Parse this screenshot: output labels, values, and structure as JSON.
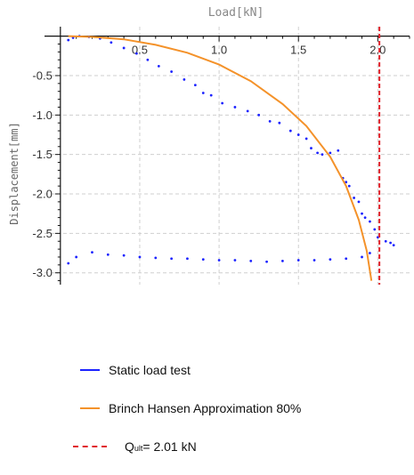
{
  "chart_data": {
    "type": "scatter",
    "title": "",
    "xlabel": "Load[kN]",
    "ylabel": "Displacement[mm]",
    "xlim": [
      -0.1,
      2.2
    ],
    "ylim": [
      -3.15,
      0.12
    ],
    "x_ticks": [
      0.5,
      1.0,
      1.5,
      2.0
    ],
    "x_tick_labels": [
      "0.5",
      "1.0",
      "1.5",
      "2.0"
    ],
    "y_ticks": [
      -0.5,
      -1.0,
      -1.5,
      -2.0,
      -2.5,
      -3.0
    ],
    "y_tick_labels": [
      "-0.5",
      "-1.0",
      "-1.5",
      "-2.0",
      "-2.5",
      "-3.0"
    ],
    "grid": true,
    "legend_position": "bottom",
    "colors": {
      "static": "#1c23ff",
      "hansen": "#f4922a",
      "qult": "#e0202a"
    },
    "series": [
      {
        "name": "Static load test",
        "kind": "scatter",
        "x": [
          0.05,
          0.08,
          0.12,
          0.18,
          0.25,
          0.32,
          0.4,
          0.48,
          0.55,
          0.62,
          0.7,
          0.78,
          0.85,
          0.9,
          0.95,
          1.02,
          1.1,
          1.18,
          1.25,
          1.32,
          1.38,
          1.45,
          1.5,
          1.55,
          1.58,
          1.62,
          1.65,
          1.7,
          1.75,
          1.78,
          1.8,
          1.82,
          1.85,
          1.88,
          1.9,
          1.92,
          1.95,
          1.98,
          2.0,
          2.05,
          2.08,
          2.1,
          1.95,
          1.9,
          1.8,
          1.7,
          1.6,
          1.5,
          1.4,
          1.3,
          1.2,
          1.1,
          1.0,
          0.9,
          0.8,
          0.7,
          0.6,
          0.5,
          0.4,
          0.3,
          0.2,
          0.1,
          0.05
        ],
        "y": [
          -0.05,
          -0.02,
          0.0,
          -0.01,
          -0.03,
          -0.08,
          -0.15,
          -0.22,
          -0.3,
          -0.38,
          -0.45,
          -0.55,
          -0.62,
          -0.72,
          -0.75,
          -0.85,
          -0.9,
          -0.95,
          -1.0,
          -1.08,
          -1.1,
          -1.2,
          -1.25,
          -1.3,
          -1.42,
          -1.48,
          -1.5,
          -1.48,
          -1.45,
          -1.8,
          -1.85,
          -1.9,
          -2.05,
          -2.1,
          -2.25,
          -2.3,
          -2.35,
          -2.45,
          -2.55,
          -2.6,
          -2.62,
          -2.65,
          -2.75,
          -2.8,
          -2.82,
          -2.83,
          -2.84,
          -2.84,
          -2.85,
          -2.86,
          -2.85,
          -2.84,
          -2.84,
          -2.83,
          -2.82,
          -2.82,
          -2.81,
          -2.8,
          -2.78,
          -2.77,
          -2.74,
          -2.8,
          -2.88
        ]
      },
      {
        "name": "Brinch Hansen Approximation 80%",
        "kind": "line",
        "x": [
          0.05,
          0.2,
          0.4,
          0.6,
          0.8,
          1.0,
          1.2,
          1.4,
          1.55,
          1.7,
          1.8,
          1.88,
          1.93,
          1.96
        ],
        "y": [
          0.0,
          -0.01,
          -0.04,
          -0.11,
          -0.21,
          -0.36,
          -0.57,
          -0.86,
          -1.14,
          -1.53,
          -1.9,
          -2.33,
          -2.72,
          -3.1
        ]
      },
      {
        "name": "Qult",
        "kind": "vline",
        "x_value": 2.01
      }
    ]
  },
  "legend": {
    "items": [
      {
        "label": "Static load test"
      },
      {
        "label": "Brinch Hansen Approximation 80%"
      },
      {
        "q_main": "Q",
        "q_sub": "ult",
        "q_rest": " = 2.01 kN"
      }
    ]
  }
}
